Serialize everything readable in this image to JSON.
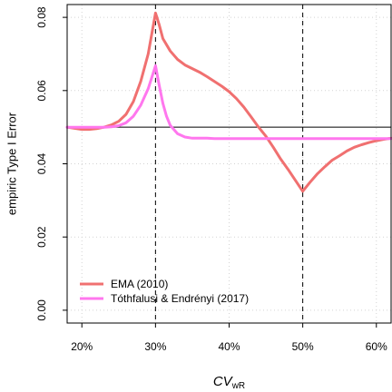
{
  "chart_data": {
    "type": "line",
    "xlabel": {
      "main": "CV",
      "sub": "wR"
    },
    "ylabel": "empiric Type I Error",
    "xlim": [
      0.18,
      0.62
    ],
    "ylim": [
      -0.0035,
      0.0835
    ],
    "x_ticks": [
      0.2,
      0.3,
      0.4,
      0.5,
      0.6
    ],
    "x_tick_labels": [
      "20%",
      "30%",
      "40%",
      "50%",
      "60%"
    ],
    "y_ticks": [
      0.0,
      0.02,
      0.04,
      0.06,
      0.08
    ],
    "y_tick_labels": [
      "0.00",
      "0.02",
      "0.04",
      "0.06",
      "0.08"
    ],
    "grid": true,
    "reference_line_y": 0.05,
    "vlines_x": [
      0.3,
      0.5
    ],
    "legend_position": "bottom-left",
    "series": [
      {
        "name": "EMA (2010)",
        "color": "#f07070",
        "x": [
          0.18,
          0.19,
          0.2,
          0.21,
          0.22,
          0.23,
          0.24,
          0.25,
          0.26,
          0.27,
          0.28,
          0.29,
          0.3,
          0.305,
          0.31,
          0.32,
          0.33,
          0.34,
          0.35,
          0.36,
          0.37,
          0.38,
          0.39,
          0.4,
          0.41,
          0.42,
          0.43,
          0.44,
          0.45,
          0.46,
          0.47,
          0.48,
          0.49,
          0.5,
          0.51,
          0.52,
          0.53,
          0.54,
          0.55,
          0.56,
          0.57,
          0.58,
          0.59,
          0.6,
          0.61,
          0.62
        ],
        "y": [
          0.05,
          0.0497,
          0.0494,
          0.0494,
          0.0496,
          0.05,
          0.0506,
          0.0516,
          0.0535,
          0.057,
          0.0625,
          0.07,
          0.0812,
          0.078,
          0.0742,
          0.0708,
          0.0685,
          0.067,
          0.066,
          0.065,
          0.0638,
          0.0625,
          0.0612,
          0.0597,
          0.0578,
          0.0555,
          0.0528,
          0.05,
          0.0475,
          0.0445,
          0.0413,
          0.0385,
          0.0355,
          0.0325,
          0.035,
          0.0373,
          0.0392,
          0.041,
          0.0422,
          0.0435,
          0.0445,
          0.0452,
          0.0458,
          0.0463,
          0.0467,
          0.047
        ]
      },
      {
        "name": "Tóthfalusi & Endrényi (2017)",
        "color": "#ff77ee",
        "x": [
          0.18,
          0.19,
          0.2,
          0.21,
          0.22,
          0.23,
          0.24,
          0.25,
          0.26,
          0.27,
          0.28,
          0.29,
          0.3,
          0.305,
          0.31,
          0.315,
          0.32,
          0.33,
          0.34,
          0.35,
          0.36,
          0.37,
          0.38,
          0.4,
          0.45,
          0.5,
          0.55,
          0.6,
          0.62
        ],
        "y": [
          0.05,
          0.05,
          0.05,
          0.05,
          0.05,
          0.05,
          0.0501,
          0.0504,
          0.0512,
          0.053,
          0.056,
          0.0605,
          0.0668,
          0.0615,
          0.0565,
          0.053,
          0.0505,
          0.0482,
          0.0473,
          0.047,
          0.047,
          0.047,
          0.0469,
          0.0469,
          0.0469,
          0.0469,
          0.0469,
          0.0469,
          0.0469
        ]
      }
    ]
  }
}
